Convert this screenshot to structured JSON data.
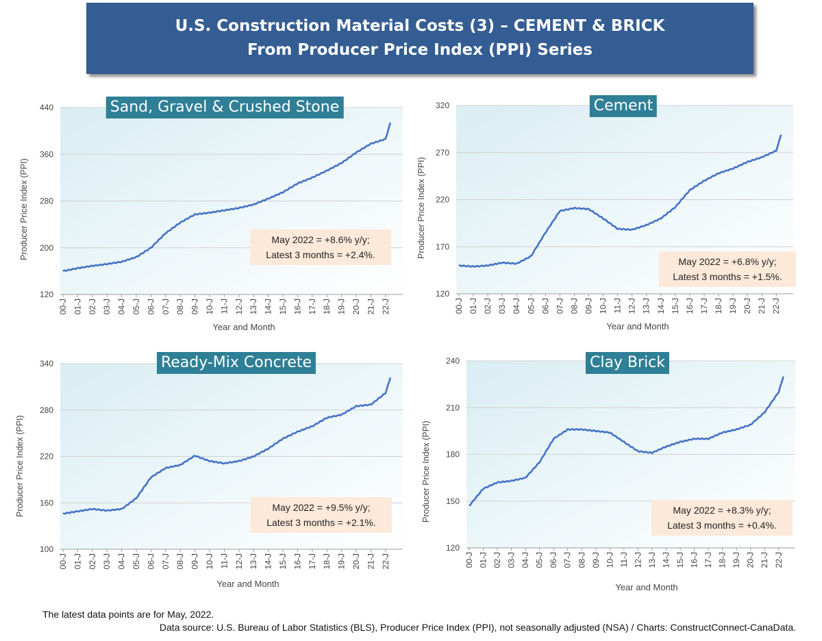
{
  "banner": {
    "line1": "U.S. Construction Material Costs (3) – CEMENT & BRICK",
    "line2": "From Producer Price Index (PPI) Series"
  },
  "footer": {
    "note": "The latest data points are for May, 2022.",
    "source": "Data source: U.S. Bureau of Labor Statistics (BLS), Producer Price Index (PPI), not seasonally adjusted (NSA) / Charts: ConstructConnect-CanaData."
  },
  "colors": {
    "line": "#4472c4",
    "banner": "#345d93",
    "title_box": "#2f7f96",
    "note_box": "#fde9d9"
  },
  "chart_data": [
    {
      "type": "line",
      "title": "Sand, Gravel & Crushed Stone",
      "xlabel": "Year and Month",
      "ylabel": "Producer Price Index (PPI)",
      "ylim": [
        120,
        440
      ],
      "yticks": [
        120,
        200,
        280,
        360,
        440
      ],
      "xticks": [
        "00-J",
        "01-J",
        "02-J",
        "03-J",
        "04-J",
        "05-J",
        "06-J",
        "07-J",
        "08-J",
        "09-J",
        "10-J",
        "11-J",
        "12-J",
        "13-J",
        "14-J",
        "15-J",
        "16-J",
        "17-J",
        "18-J",
        "19-J",
        "20-J",
        "21-J",
        "22-J"
      ],
      "x": [
        "2000-01",
        "2001-01",
        "2002-01",
        "2003-01",
        "2004-01",
        "2005-01",
        "2006-01",
        "2007-01",
        "2008-01",
        "2009-01",
        "2010-01",
        "2011-01",
        "2012-01",
        "2013-01",
        "2014-01",
        "2015-01",
        "2016-01",
        "2017-01",
        "2018-01",
        "2019-01",
        "2020-01",
        "2021-01",
        "2022-01",
        "2022-05"
      ],
      "values": [
        160,
        165,
        169,
        172,
        176,
        184,
        200,
        225,
        243,
        257,
        260,
        264,
        268,
        274,
        284,
        295,
        310,
        320,
        332,
        345,
        363,
        378,
        386,
        414
      ],
      "annotation": [
        "May 2022 = +8.6% y/y;",
        "Latest 3 months = +2.4%."
      ],
      "annotation_position": "lower-right"
    },
    {
      "type": "line",
      "title": "Cement",
      "xlabel": "Year and Month",
      "ylabel": "Producer Price Index (PPI)",
      "ylim": [
        120,
        320
      ],
      "yticks": [
        120,
        170,
        220,
        270,
        320
      ],
      "xticks": [
        "00-J",
        "01-J",
        "02-J",
        "03-J",
        "04-J",
        "05-J",
        "06-J",
        "07-J",
        "08-J",
        "09-J",
        "10-J",
        "11-J",
        "12-J",
        "13-J",
        "14-J",
        "15-J",
        "16-J",
        "17-J",
        "18-J",
        "19-J",
        "20-J",
        "21-J",
        "22-J"
      ],
      "x": [
        "2000-01",
        "2001-01",
        "2002-01",
        "2003-01",
        "2004-01",
        "2005-01",
        "2006-01",
        "2007-01",
        "2008-01",
        "2009-01",
        "2010-01",
        "2011-01",
        "2012-01",
        "2013-01",
        "2014-01",
        "2015-01",
        "2016-01",
        "2017-01",
        "2018-01",
        "2019-01",
        "2020-01",
        "2021-01",
        "2022-01",
        "2022-05"
      ],
      "values": [
        150,
        149,
        150,
        153,
        152,
        160,
        185,
        208,
        211,
        210,
        200,
        189,
        188,
        193,
        200,
        212,
        230,
        240,
        248,
        253,
        260,
        265,
        272,
        289
      ],
      "annotation": [
        "May 2022 = +6.8% y/y;",
        "Latest 3 months = +1.5%."
      ],
      "annotation_position": "lower-right"
    },
    {
      "type": "line",
      "title": "Ready-Mix Concrete",
      "xlabel": "Year and Month",
      "ylabel": "Producer Price Index (PPI)",
      "ylim": [
        100,
        340
      ],
      "yticks": [
        100,
        160,
        220,
        280,
        340
      ],
      "xticks": [
        "00-J",
        "01-J",
        "02-J",
        "03-J",
        "04-J",
        "05-J",
        "06-J",
        "07-J",
        "08-J",
        "09-J",
        "10-J",
        "11-J",
        "12-J",
        "13-J",
        "14-J",
        "15-J",
        "16-J",
        "17-J",
        "18-J",
        "19-J",
        "20-J",
        "21-J",
        "22-J"
      ],
      "x": [
        "2000-01",
        "2001-01",
        "2002-01",
        "2003-01",
        "2004-01",
        "2005-01",
        "2006-01",
        "2007-01",
        "2008-01",
        "2009-01",
        "2010-01",
        "2011-01",
        "2012-01",
        "2013-01",
        "2014-01",
        "2015-01",
        "2016-01",
        "2017-01",
        "2018-01",
        "2019-01",
        "2020-01",
        "2021-01",
        "2022-01",
        "2022-05"
      ],
      "values": [
        146,
        149,
        152,
        150,
        152,
        166,
        193,
        205,
        209,
        221,
        214,
        211,
        214,
        220,
        230,
        243,
        252,
        259,
        270,
        274,
        285,
        287,
        302,
        322
      ],
      "annotation": [
        "May 2022 = +9.5% y/y;",
        "Latest 3 months = +2.1%."
      ],
      "annotation_position": "lower-right"
    },
    {
      "type": "line",
      "title": "Clay Brick",
      "xlabel": "Year and Month",
      "ylabel": "Producer Price Index (PPI)",
      "ylim": [
        120,
        240
      ],
      "yticks": [
        120,
        150,
        180,
        210,
        240
      ],
      "xticks": [
        "00-J",
        "01-J",
        "02-J",
        "03-J",
        "04-J",
        "05-J",
        "06-J",
        "07-J",
        "08-J",
        "09-J",
        "10-J",
        "11-J",
        "12-J",
        "13-J",
        "14-J",
        "15-J",
        "16-J",
        "17-J",
        "18-J",
        "19-J",
        "20-J",
        "21-J",
        "22-J"
      ],
      "x": [
        "2000-01",
        "2001-01",
        "2002-01",
        "2003-01",
        "2004-01",
        "2005-01",
        "2006-01",
        "2007-01",
        "2008-01",
        "2009-01",
        "2010-01",
        "2011-01",
        "2012-01",
        "2013-01",
        "2014-01",
        "2015-01",
        "2016-01",
        "2017-01",
        "2018-01",
        "2019-01",
        "2020-01",
        "2021-01",
        "2022-01",
        "2022-05"
      ],
      "values": [
        147,
        158,
        162,
        163,
        165,
        175,
        190,
        196,
        196,
        195,
        194,
        188,
        182,
        181,
        185,
        188,
        190,
        190,
        194,
        196,
        199,
        207,
        220,
        230
      ],
      "annotation": [
        "May 2022 = +8.3% y/y;",
        "Latest 3 months = +0.4%."
      ],
      "annotation_position": "lower-right"
    }
  ]
}
